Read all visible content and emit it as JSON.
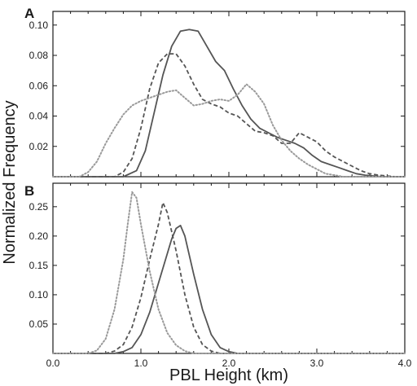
{
  "chart_data": {
    "type": "line",
    "xlabel": "PBL Height (km)",
    "ylabel": "Normalized Frequency",
    "xlim": [
      0.0,
      4.0
    ],
    "x_ticks": [
      0.0,
      1.0,
      2.0,
      3.0,
      4.0
    ],
    "x_tick_labels": [
      "0.0",
      "1.0",
      "2.0",
      "3.0",
      "4.0"
    ],
    "colors": {
      "solid": "#555555",
      "dashed": "#555555",
      "dotted": "#9a9a9a",
      "frame": "#1a1a1a"
    },
    "panels": [
      {
        "label": "A",
        "ylim": [
          0.0,
          0.109
        ],
        "y_ticks": [
          0.02,
          0.04,
          0.06,
          0.08,
          0.1
        ],
        "y_tick_labels": [
          "0.02",
          "0.04",
          "0.06",
          "0.08",
          "0.10"
        ],
        "series": [
          {
            "style": "solid",
            "x": [
              0.0,
              0.8,
              0.95,
              1.05,
              1.15,
              1.25,
              1.35,
              1.45,
              1.55,
              1.65,
              1.75,
              1.85,
              1.95,
              2.05,
              2.15,
              2.25,
              2.35,
              2.45,
              2.55,
              2.65,
              2.75,
              2.85,
              2.95,
              3.05,
              3.15,
              3.25,
              3.35,
              3.45,
              3.55,
              3.65,
              3.75,
              3.85,
              4.0
            ],
            "y": [
              0.0,
              0.0,
              0.004,
              0.017,
              0.042,
              0.067,
              0.086,
              0.096,
              0.097,
              0.096,
              0.086,
              0.076,
              0.07,
              0.058,
              0.047,
              0.038,
              0.032,
              0.029,
              0.026,
              0.024,
              0.022,
              0.019,
              0.014,
              0.01,
              0.008,
              0.006,
              0.004,
              0.002,
              0.001,
              0.0005,
              0.0,
              0.0,
              0.0
            ]
          },
          {
            "style": "dashed",
            "x": [
              0.0,
              0.7,
              0.8,
              0.9,
              1.0,
              1.1,
              1.2,
              1.3,
              1.4,
              1.5,
              1.6,
              1.7,
              1.8,
              1.9,
              2.0,
              2.1,
              2.2,
              2.3,
              2.4,
              2.5,
              2.6,
              2.7,
              2.8,
              2.9,
              3.0,
              3.1,
              3.2,
              3.3,
              3.4,
              3.5,
              3.6,
              3.7,
              3.8,
              3.9,
              4.0
            ],
            "y": [
              0.0,
              0.0,
              0.003,
              0.012,
              0.032,
              0.058,
              0.075,
              0.081,
              0.081,
              0.073,
              0.061,
              0.051,
              0.048,
              0.046,
              0.042,
              0.04,
              0.035,
              0.03,
              0.029,
              0.027,
              0.022,
              0.022,
              0.029,
              0.026,
              0.023,
              0.017,
              0.013,
              0.01,
              0.007,
              0.004,
              0.002,
              0.001,
              0.0005,
              0.0,
              0.0
            ]
          },
          {
            "style": "dotted",
            "x": [
              0.0,
              0.3,
              0.4,
              0.5,
              0.6,
              0.7,
              0.8,
              0.9,
              1.0,
              1.1,
              1.2,
              1.3,
              1.4,
              1.5,
              1.6,
              1.7,
              1.8,
              1.9,
              2.0,
              2.1,
              2.2,
              2.3,
              2.4,
              2.5,
              2.6,
              2.7,
              2.8,
              2.9,
              3.0,
              3.1,
              3.2,
              3.3,
              3.4,
              4.0
            ],
            "y": [
              0.0,
              0.0,
              0.003,
              0.01,
              0.022,
              0.032,
              0.041,
              0.047,
              0.05,
              0.052,
              0.054,
              0.056,
              0.057,
              0.052,
              0.047,
              0.048,
              0.05,
              0.051,
              0.05,
              0.054,
              0.061,
              0.056,
              0.048,
              0.034,
              0.024,
              0.017,
              0.012,
              0.008,
              0.005,
              0.002,
              0.001,
              0.0,
              0.0,
              0.0
            ]
          }
        ]
      },
      {
        "label": "B",
        "ylim": [
          0.0,
          0.29
        ],
        "y_ticks": [
          0.05,
          0.1,
          0.15,
          0.2,
          0.25
        ],
        "y_tick_labels": [
          "0.05",
          "0.10",
          "0.15",
          "0.20",
          "0.25"
        ],
        "series": [
          {
            "style": "solid",
            "x": [
              0.0,
              0.7,
              0.8,
              0.9,
              1.0,
              1.1,
              1.2,
              1.3,
              1.35,
              1.4,
              1.45,
              1.5,
              1.6,
              1.7,
              1.8,
              1.9,
              2.0,
              2.1,
              4.0
            ],
            "y": [
              0.0,
              0.0,
              0.003,
              0.01,
              0.032,
              0.07,
              0.12,
              0.17,
              0.195,
              0.213,
              0.218,
              0.2,
              0.135,
              0.075,
              0.032,
              0.01,
              0.003,
              0.0,
              0.0
            ]
          },
          {
            "style": "dashed",
            "x": [
              0.0,
              0.6,
              0.7,
              0.8,
              0.9,
              1.0,
              1.1,
              1.2,
              1.25,
              1.3,
              1.4,
              1.5,
              1.6,
              1.7,
              1.8,
              1.9,
              4.0
            ],
            "y": [
              0.0,
              0.0,
              0.004,
              0.015,
              0.045,
              0.095,
              0.16,
              0.22,
              0.257,
              0.24,
              0.175,
              0.1,
              0.045,
              0.015,
              0.004,
              0.0,
              0.0
            ]
          },
          {
            "style": "dotted",
            "x": [
              0.0,
              0.4,
              0.5,
              0.6,
              0.7,
              0.8,
              0.85,
              0.9,
              0.95,
              1.0,
              1.1,
              1.2,
              1.3,
              1.4,
              1.5,
              1.6,
              4.0
            ],
            "y": [
              0.0,
              0.0,
              0.005,
              0.025,
              0.075,
              0.16,
              0.22,
              0.275,
              0.265,
              0.22,
              0.14,
              0.075,
              0.035,
              0.014,
              0.004,
              0.0,
              0.0
            ]
          }
        ]
      }
    ]
  }
}
